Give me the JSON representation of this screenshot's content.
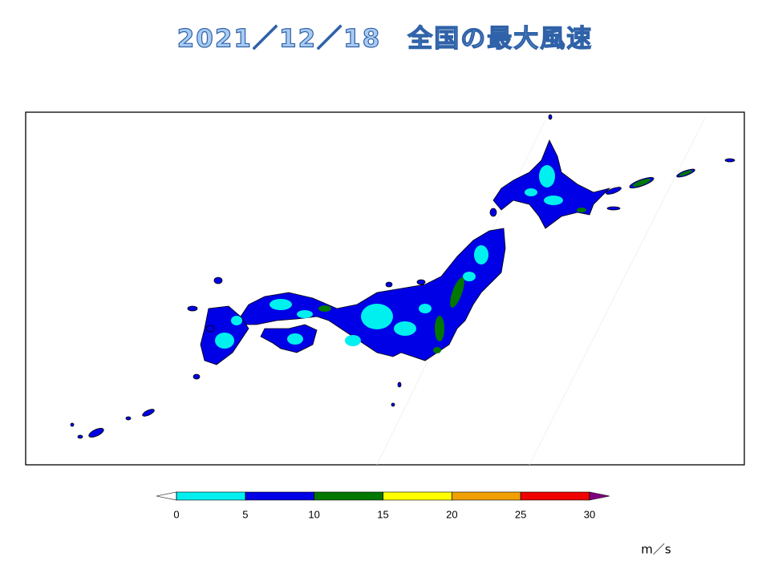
{
  "title": "2021／12／18　全国の最大風速",
  "colorbar": {
    "ticks": [
      0,
      5,
      10,
      15,
      20,
      25,
      30
    ],
    "colors": [
      "#00f0f0",
      "#0000e6",
      "#007800",
      "#ffff00",
      "#f0a000",
      "#f00000"
    ],
    "under_color": "#ffffff",
    "over_color": "#800080",
    "unit": "m／s"
  }
}
